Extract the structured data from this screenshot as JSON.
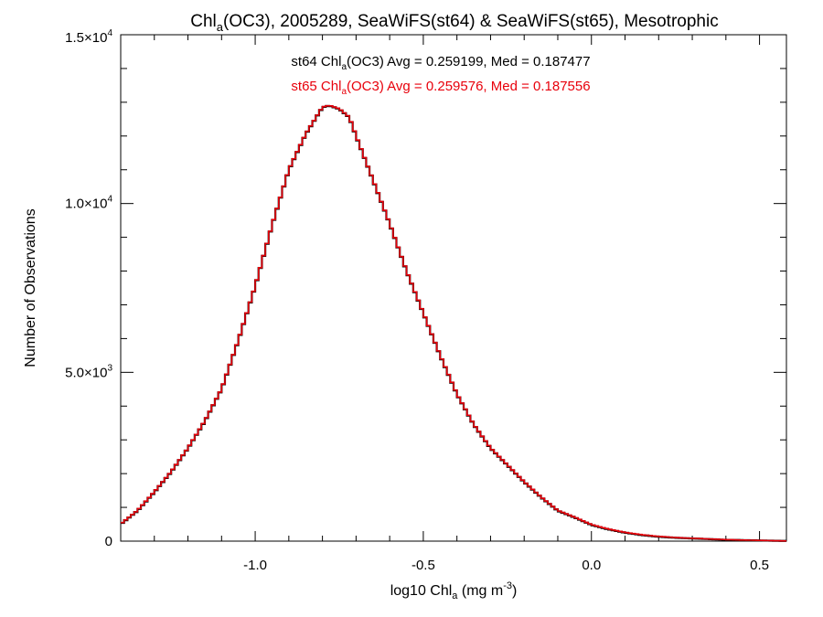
{
  "chart_data": {
    "type": "line",
    "title": {
      "base": "Chl",
      "sub": "a",
      "rest": "(OC3), 2005289, SeaWiFS(st64) & SeaWiFS(st65), Mesotrophic"
    },
    "xlabel": {
      "base": "log10 Chl",
      "sub": "a",
      "mid": " (mg m",
      "sup": "-3",
      "end": ")"
    },
    "ylabel": "Number of Observations",
    "xlim": [
      -1.4,
      0.58
    ],
    "ylim": [
      0,
      15000
    ],
    "x_tick_labels": [
      {
        "value": -1.0,
        "label": "-1.0"
      },
      {
        "value": -0.5,
        "label": "-0.5"
      },
      {
        "value": 0.0,
        "label": "0.0"
      },
      {
        "value": 0.5,
        "label": "0.5"
      }
    ],
    "y_tick_labels": [
      {
        "value": 0,
        "mant": "0",
        "exp": ""
      },
      {
        "value": 5000,
        "mant": "5.0×10",
        "exp": "3"
      },
      {
        "value": 10000,
        "mant": "1.0×10",
        "exp": "4"
      },
      {
        "value": 15000,
        "mant": "1.5×10",
        "exp": "4"
      }
    ],
    "x_minor_step": 0.1,
    "y_minor_step": 1000,
    "annotations": [
      {
        "color": "#000000",
        "prefix": "st64 Chl",
        "sub": "a",
        "text": "(OC3) Avg = 0.259199, Med = 0.187477"
      },
      {
        "color": "#e8000b",
        "prefix": "st65 Chl",
        "sub": "a",
        "text": "(OC3) Avg = 0.259576, Med = 0.187556"
      }
    ],
    "series": [
      {
        "color": "#000000",
        "x": [
          -1.4,
          -1.35,
          -1.3,
          -1.25,
          -1.2,
          -1.15,
          -1.1,
          -1.05,
          -1.0,
          -0.95,
          -0.9,
          -0.85,
          -0.8,
          -0.78,
          -0.75,
          -0.72,
          -0.7,
          -0.65,
          -0.6,
          -0.55,
          -0.5,
          -0.45,
          -0.4,
          -0.35,
          -0.3,
          -0.25,
          -0.2,
          -0.15,
          -0.1,
          -0.05,
          0.0,
          0.05,
          0.1,
          0.15,
          0.2,
          0.25,
          0.3,
          0.35,
          0.4,
          0.45,
          0.5,
          0.55,
          0.58
        ],
        "y": [
          500,
          900,
          1450,
          2050,
          2750,
          3550,
          4500,
          5950,
          7550,
          9350,
          11000,
          12050,
          12850,
          12900,
          12800,
          12550,
          12000,
          10700,
          9400,
          8000,
          6750,
          5500,
          4350,
          3450,
          2750,
          2250,
          1750,
          1300,
          900,
          700,
          480,
          350,
          250,
          180,
          130,
          100,
          80,
          60,
          40,
          30,
          20,
          10,
          5
        ]
      },
      {
        "color": "#e8000b",
        "x": [
          -1.4,
          -1.35,
          -1.3,
          -1.25,
          -1.2,
          -1.15,
          -1.1,
          -1.05,
          -1.0,
          -0.95,
          -0.9,
          -0.85,
          -0.8,
          -0.78,
          -0.75,
          -0.72,
          -0.7,
          -0.65,
          -0.6,
          -0.55,
          -0.5,
          -0.45,
          -0.4,
          -0.35,
          -0.3,
          -0.25,
          -0.2,
          -0.15,
          -0.1,
          -0.05,
          0.0,
          0.05,
          0.1,
          0.15,
          0.2,
          0.25,
          0.3,
          0.35,
          0.4,
          0.45,
          0.5,
          0.55,
          0.58
        ],
        "y": [
          510,
          910,
          1460,
          2060,
          2760,
          3560,
          4510,
          5960,
          7560,
          9360,
          11010,
          12060,
          12860,
          12910,
          12810,
          12560,
          12010,
          10710,
          9410,
          8010,
          6760,
          5510,
          4360,
          3460,
          2760,
          2260,
          1760,
          1310,
          910,
          710,
          490,
          360,
          260,
          190,
          140,
          105,
          85,
          65,
          45,
          32,
          22,
          12,
          6
        ]
      }
    ]
  }
}
